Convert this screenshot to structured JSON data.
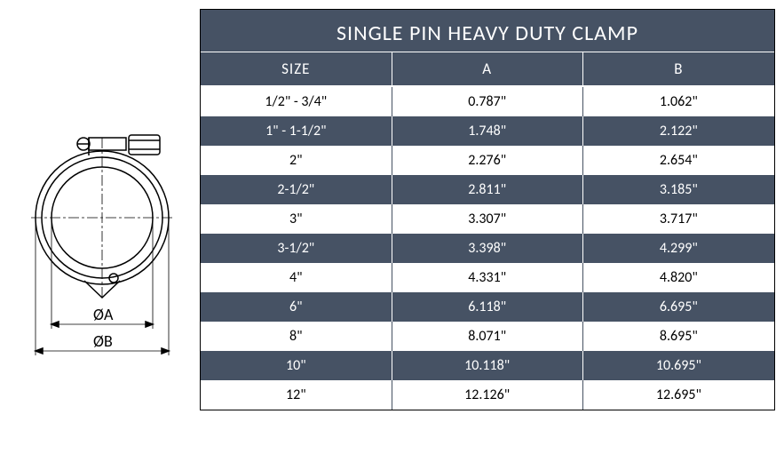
{
  "title": "SINGLE PIN HEAVY DUTY CLAMP",
  "columns": [
    "SIZE",
    "A",
    "B"
  ],
  "colors": {
    "dark_bg": "#465264",
    "light_bg": "#ffffff",
    "border": "#000000",
    "text_light": "#ffffff",
    "text_dark": "#000000"
  },
  "diagram_labels": {
    "dim_a": "ØA",
    "dim_b": "ØB"
  },
  "rows": [
    {
      "size": "1/2\" - 3/4\"",
      "a": "0.787\"",
      "b": "1.062\"",
      "shade": "light"
    },
    {
      "size": "1\" - 1-1/2\"",
      "a": "1.748\"",
      "b": "2.122\"",
      "shade": "dark"
    },
    {
      "size": "2\"",
      "a": "2.276\"",
      "b": "2.654\"",
      "shade": "light"
    },
    {
      "size": "2-1/2\"",
      "a": "2.811\"",
      "b": "3.185\"",
      "shade": "dark"
    },
    {
      "size": "3\"",
      "a": "3.307\"",
      "b": "3.717\"",
      "shade": "light"
    },
    {
      "size": "3-1/2\"",
      "a": "3.398\"",
      "b": "4.299\"",
      "shade": "dark"
    },
    {
      "size": "4\"",
      "a": "4.331\"",
      "b": "4.820\"",
      "shade": "light"
    },
    {
      "size": "6\"",
      "a": "6.118\"",
      "b": "6.695\"",
      "shade": "dark"
    },
    {
      "size": "8\"",
      "a": "8.071\"",
      "b": "8.695\"",
      "shade": "light"
    },
    {
      "size": "10\"",
      "a": "10.118\"",
      "b": "10.695\"",
      "shade": "dark"
    },
    {
      "size": "12\"",
      "a": "12.126\"",
      "b": "12.695\"",
      "shade": "light"
    }
  ]
}
